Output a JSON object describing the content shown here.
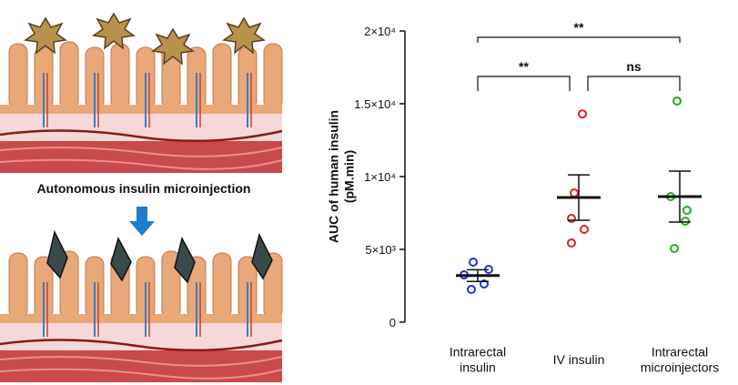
{
  "illustration": {
    "caption": "Autonomous insulin microinjection"
  },
  "chart_data": {
    "type": "dot_plot",
    "ylabel": "AUC of human insulin\n(pM.min)",
    "categories": [
      "Intrarectal\ninsulin",
      "IV insulin",
      "Intrarectal\nmicroinjectors"
    ],
    "colors": [
      "#1f2fe0",
      "#e02020",
      "#20b020"
    ],
    "values": [
      [
        4125,
        3625,
        3250,
        2625,
        2250
      ],
      [
        14300,
        8875,
        7125,
        6375,
        5440
      ],
      [
        15190,
        8625,
        7690,
        6940,
        5060
      ]
    ],
    "means": [
      3200,
      8560,
      8625
    ],
    "sems": [
      400,
      1560,
      1750
    ],
    "ylim": [
      0,
      20000
    ],
    "yticks": [
      0,
      {
        "value": 5000,
        "label": "5×10³"
      },
      {
        "value": 10000,
        "label": "1×10⁴"
      },
      {
        "value": 15000,
        "label": "1.5×10⁴"
      },
      {
        "value": 20000,
        "label": "2×10⁴"
      }
    ],
    "annotations": [
      "**",
      "**",
      "ns"
    ]
  }
}
